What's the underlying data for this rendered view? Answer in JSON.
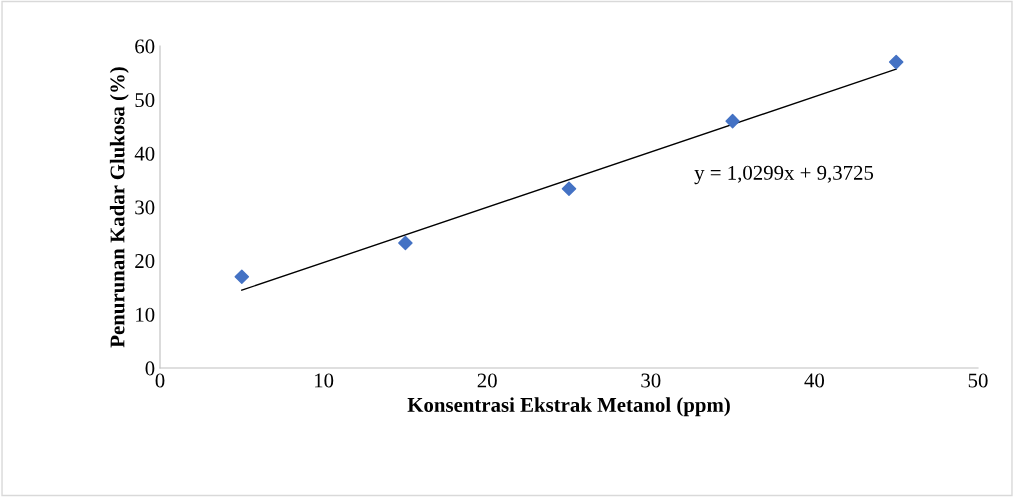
{
  "chart_data": {
    "type": "scatter",
    "xlabel": "Konsentrasi Ekstrak Metanol (ppm)",
    "ylabel": "Penurunan Kadar Glukosa (%)",
    "annotations": [
      "y = 1,0299x + 9,3725"
    ],
    "series": [
      {
        "color": "#4472c4",
        "marker": "diamond",
        "x": [
          5,
          15,
          25,
          35,
          45
        ],
        "values": [
          17.0,
          23.3,
          33.4,
          46.0,
          57.0
        ]
      },
      {
        "type": "line",
        "color": "#000000",
        "marker": "none",
        "x": [
          5,
          45
        ],
        "values": [
          14.5,
          55.7
        ]
      }
    ],
    "xlim": [
      0,
      50
    ],
    "xticks": [
      0,
      10,
      20,
      30,
      40,
      50
    ],
    "ylim": [
      0,
      60
    ],
    "yticks": [
      0,
      10,
      20,
      30,
      40,
      50,
      60
    ],
    "grid": false,
    "legend": false
  }
}
